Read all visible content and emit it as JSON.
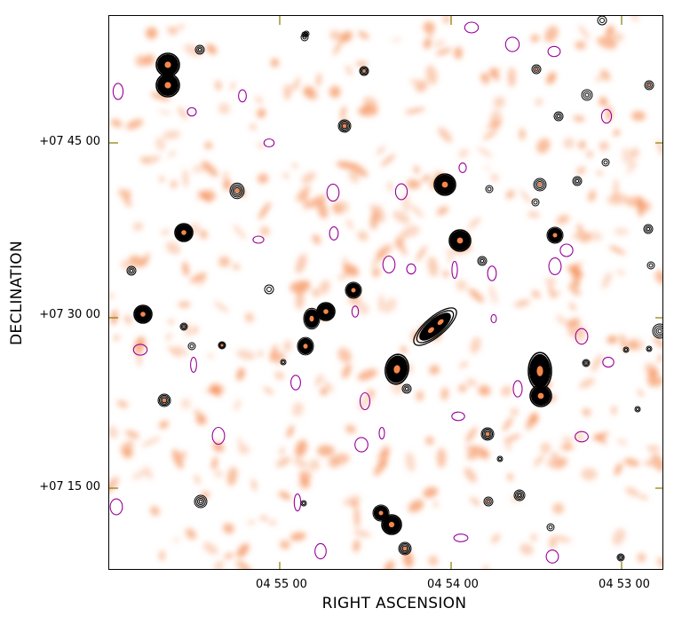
{
  "figure": {
    "x_axis_title": "RIGHT ASCENSION",
    "y_axis_title": "DECLINATION",
    "x_ticks": [
      "04 55 00",
      "04 54 00",
      "04 53 00"
    ],
    "y_ticks": [
      "+07 45 00",
      "+07 30 00",
      "+07 15 00"
    ]
  },
  "colors": {
    "background_emission": "#f4864a",
    "radio_contour": "#000000",
    "negative_contour": "#990099",
    "tick_mark": "#8a7a00"
  }
}
